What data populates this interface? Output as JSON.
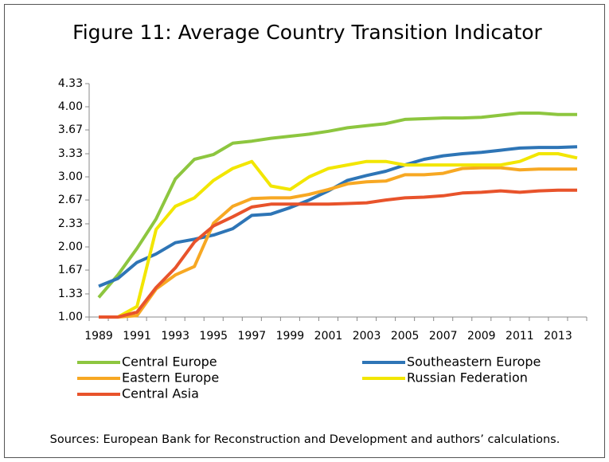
{
  "chart_data": {
    "type": "line",
    "title": "Figure 11: Average Country Transition Indicator",
    "source": "Sources: European Bank for Reconstruction and Development and authors’ calculations.",
    "categories": [
      1989,
      null,
      1991,
      null,
      1993,
      null,
      1995,
      null,
      1997,
      null,
      1999,
      null,
      2001,
      null,
      2003,
      null,
      2005,
      null,
      2007,
      null,
      2009,
      null,
      2011,
      null,
      2013,
      null
    ],
    "ylim": [
      1,
      4.33
    ],
    "yticks": [
      {
        "value": 1,
        "label": "1.00"
      },
      1.33,
      1.67,
      {
        "value": 2,
        "label": "2.00"
      },
      2.33,
      2.67,
      {
        "value": 3,
        "label": "3.00"
      },
      3.33,
      3.67,
      {
        "value": 4,
        "label": "4.00"
      },
      4.33
    ],
    "series": [
      {
        "name": "Central Europe",
        "color": "#8dc63f",
        "values": [
          1.28,
          1.6,
          1.98,
          2.4,
          2.97,
          3.25,
          3.32,
          3.48,
          3.51,
          3.55,
          3.58,
          3.61,
          3.65,
          3.7,
          3.73,
          3.76,
          3.82,
          3.83,
          3.84,
          3.84,
          3.85,
          3.88,
          3.91,
          3.91,
          3.89,
          3.89
        ]
      },
      {
        "name": "Southeastern Europe",
        "color": "#2e75b6",
        "values": [
          1.44,
          1.55,
          1.78,
          1.9,
          2.06,
          2.11,
          2.17,
          2.26,
          2.45,
          2.47,
          2.56,
          2.67,
          2.8,
          2.95,
          3.02,
          3.08,
          3.17,
          3.25,
          3.3,
          3.33,
          3.35,
          3.38,
          3.41,
          3.42,
          3.42,
          3.43
        ]
      },
      {
        "name": "Eastern Europe",
        "color": "#f7a823",
        "values": [
          1,
          1,
          1.02,
          1.4,
          1.6,
          1.72,
          2.34,
          2.58,
          2.69,
          2.7,
          2.7,
          2.75,
          2.82,
          2.9,
          2.93,
          2.94,
          3.03,
          3.03,
          3.05,
          3.12,
          3.13,
          3.13,
          3.1,
          3.11,
          3.11,
          3.11
        ]
      },
      {
        "name": "Russian Federation",
        "color": "#f2e600",
        "values": [
          1,
          1,
          1.15,
          2.25,
          2.58,
          2.7,
          2.95,
          3.12,
          3.22,
          2.87,
          2.82,
          3.0,
          3.12,
          3.17,
          3.22,
          3.22,
          3.17,
          3.17,
          3.17,
          3.17,
          3.17,
          3.17,
          3.22,
          3.33,
          3.33,
          3.27
        ]
      },
      {
        "name": "Central Asia",
        "color": "#e8532b",
        "values": [
          1,
          1,
          1.07,
          1.42,
          1.7,
          2.07,
          2.3,
          2.43,
          2.57,
          2.61,
          2.61,
          2.61,
          2.61,
          2.62,
          2.63,
          2.67,
          2.7,
          2.71,
          2.73,
          2.77,
          2.78,
          2.8,
          2.78,
          2.8,
          2.81,
          2.81
        ]
      }
    ]
  }
}
